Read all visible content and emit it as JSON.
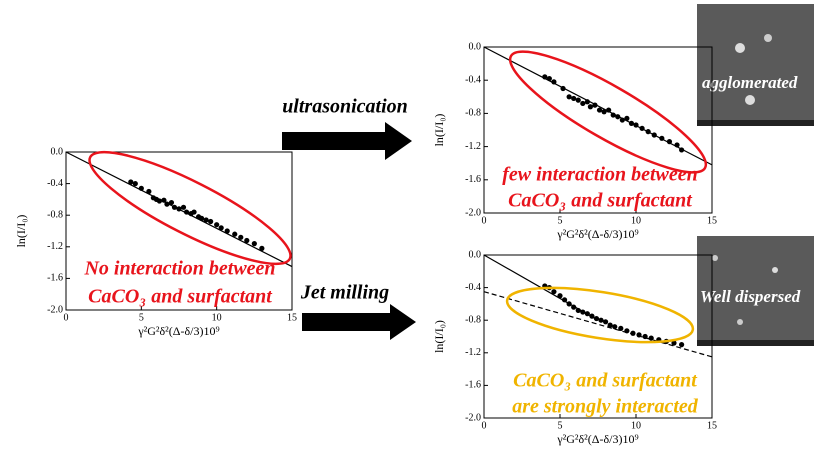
{
  "chart_data": [
    {
      "type": "scatter",
      "xlim": [
        0,
        15
      ],
      "ylim": [
        -2.0,
        0.0
      ],
      "xticks": [
        0,
        5,
        10,
        15
      ],
      "yticks": [
        {
          "value": 0.0,
          "label": "0.0"
        },
        -0.4,
        -0.8,
        -1.2,
        -1.6,
        {
          "value": -2.0,
          "label": "-2.0"
        }
      ],
      "xlabel": "γ²G²δ²(Δ-δ/3)10⁹",
      "ylabel": "ln(I/I₀)",
      "color": "#000000",
      "x": [
        4.3,
        4.6,
        5.0,
        5.5,
        5.8,
        6.0,
        6.2,
        6.5,
        6.7,
        7.0,
        7.2,
        7.5,
        7.8,
        8.0,
        8.3,
        8.5,
        8.8,
        9.0,
        9.3,
        9.6,
        10.0,
        10.3,
        10.7,
        11.2,
        11.6,
        12.0,
        12.5,
        13.0
      ],
      "values": [
        -0.38,
        -0.4,
        -0.46,
        -0.5,
        -0.58,
        -0.6,
        -0.62,
        -0.61,
        -0.66,
        -0.64,
        -0.7,
        -0.72,
        -0.7,
        -0.76,
        -0.78,
        -0.76,
        -0.82,
        -0.84,
        -0.86,
        -0.88,
        -0.92,
        -0.96,
        -1.0,
        -1.04,
        -1.08,
        -1.12,
        -1.16,
        -1.22
      ],
      "lines": [
        {
          "style": "solid",
          "x": [
            0,
            15
          ],
          "y": [
            0.0,
            -1.45
          ]
        }
      ],
      "annotations": [
        "No interaction between",
        "CaCO₃ and surfactant"
      ],
      "annotation_color": "#e8141c"
    },
    {
      "type": "scatter",
      "xlim": [
        0,
        15
      ],
      "ylim": [
        -2.0,
        0.0
      ],
      "xticks": [
        0,
        5,
        10,
        15
      ],
      "yticks": [
        {
          "value": 0.0,
          "label": "0.0"
        },
        -0.4,
        -0.8,
        -1.2,
        -1.6,
        {
          "value": -2.0,
          "label": "-2.0"
        }
      ],
      "xlabel": "γ²G²δ²(Δ-δ/3)10⁹",
      "ylabel": "ln(I/I₀)",
      "color": "#000000",
      "x": [
        4.0,
        4.3,
        4.6,
        5.2,
        5.6,
        5.9,
        6.2,
        6.5,
        6.8,
        7.0,
        7.3,
        7.6,
        7.9,
        8.2,
        8.5,
        8.8,
        9.1,
        9.4,
        9.7,
        10.0,
        10.4,
        10.8,
        11.2,
        11.7,
        12.2,
        12.7,
        13.0
      ],
      "values": [
        -0.36,
        -0.38,
        -0.42,
        -0.5,
        -0.6,
        -0.62,
        -0.64,
        -0.68,
        -0.66,
        -0.72,
        -0.7,
        -0.76,
        -0.78,
        -0.76,
        -0.82,
        -0.84,
        -0.88,
        -0.86,
        -0.92,
        -0.94,
        -0.98,
        -1.02,
        -1.06,
        -1.1,
        -1.14,
        -1.18,
        -1.24
      ],
      "lines": [
        {
          "style": "solid",
          "x": [
            0,
            15
          ],
          "y": [
            0.0,
            -1.42
          ]
        }
      ],
      "annotations": [
        "few interaction between",
        "CaCO₃ and surfactant"
      ],
      "annotation_color": "#e8141c"
    },
    {
      "type": "scatter",
      "xlim": [
        0,
        15
      ],
      "ylim": [
        -2.0,
        0.0
      ],
      "xticks": [
        0,
        5,
        10,
        15
      ],
      "yticks": [
        {
          "value": 0.0,
          "label": "0.0"
        },
        -0.4,
        -0.8,
        -1.2,
        -1.6,
        {
          "value": -2.0,
          "label": "-2.0"
        }
      ],
      "xlabel": "γ²G²δ²(Δ-δ/3)10⁹",
      "ylabel": "ln(I/I₀)",
      "color": "#000000",
      "x": [
        4.0,
        4.3,
        4.6,
        5.0,
        5.3,
        5.6,
        5.9,
        6.2,
        6.5,
        6.8,
        7.1,
        7.4,
        7.7,
        8.0,
        8.3,
        8.6,
        9.0,
        9.4,
        9.8,
        10.2,
        10.6,
        11.0,
        11.5,
        12.0,
        12.5,
        13.0
      ],
      "values": [
        -0.38,
        -0.4,
        -0.45,
        -0.5,
        -0.55,
        -0.6,
        -0.64,
        -0.68,
        -0.7,
        -0.72,
        -0.75,
        -0.78,
        -0.8,
        -0.82,
        -0.86,
        -0.88,
        -0.9,
        -0.93,
        -0.96,
        -0.98,
        -1.0,
        -1.02,
        -1.04,
        -1.06,
        -1.08,
        -1.1
      ],
      "lines": [
        {
          "style": "solid",
          "x": [
            0,
            7.5
          ],
          "y": [
            0.0,
            -0.8
          ]
        },
        {
          "style": "dashed",
          "x": [
            0,
            15
          ],
          "y": [
            -0.45,
            -1.25
          ]
        }
      ],
      "annotations": [
        "CaCO₃ and surfactant",
        "are strongly interacted"
      ],
      "annotation_color": "#f0b400"
    }
  ],
  "arrows": [
    {
      "label": "ultrasonication"
    },
    {
      "label": "Jet milling"
    }
  ],
  "images": [
    {
      "label": "agglomerated"
    },
    {
      "label": "Well dispersed"
    }
  ]
}
